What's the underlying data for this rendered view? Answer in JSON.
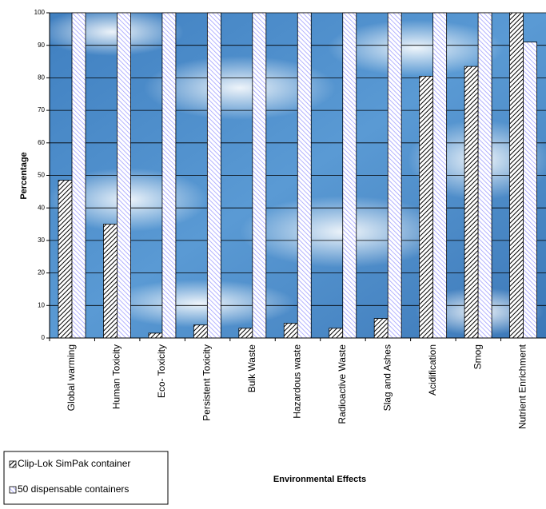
{
  "chart_data": {
    "type": "bar",
    "xlabel": "Environmental Effects",
    "ylabel": "Percentage",
    "categories": [
      "Global warming",
      "Human Toxicity",
      "Eco- Toxicity",
      "Persistent Toxicity",
      "Bulk Waste",
      "Hazardous waste",
      "Radioactive Waste",
      "Slag and Ashes",
      "Acidification",
      "Smog",
      "Nutrient Enrichment"
    ],
    "series": [
      {
        "name": "Clip-Lok SimPak container",
        "color": "#000000",
        "values": [
          48.5,
          35,
          1.5,
          4,
          3,
          4.5,
          3,
          6,
          80.5,
          83.5,
          100
        ]
      },
      {
        "name": "50 dispensable containers",
        "color": "#9999ff",
        "values": [
          100,
          100,
          100,
          100,
          100,
          100,
          100,
          100,
          100,
          100,
          91
        ]
      }
    ],
    "ylim": [
      0,
      100
    ],
    "yticks": [
      0,
      10,
      20,
      30,
      40,
      50,
      60,
      70,
      80,
      90,
      100
    ],
    "grid": true,
    "legend": "bottom-left"
  }
}
